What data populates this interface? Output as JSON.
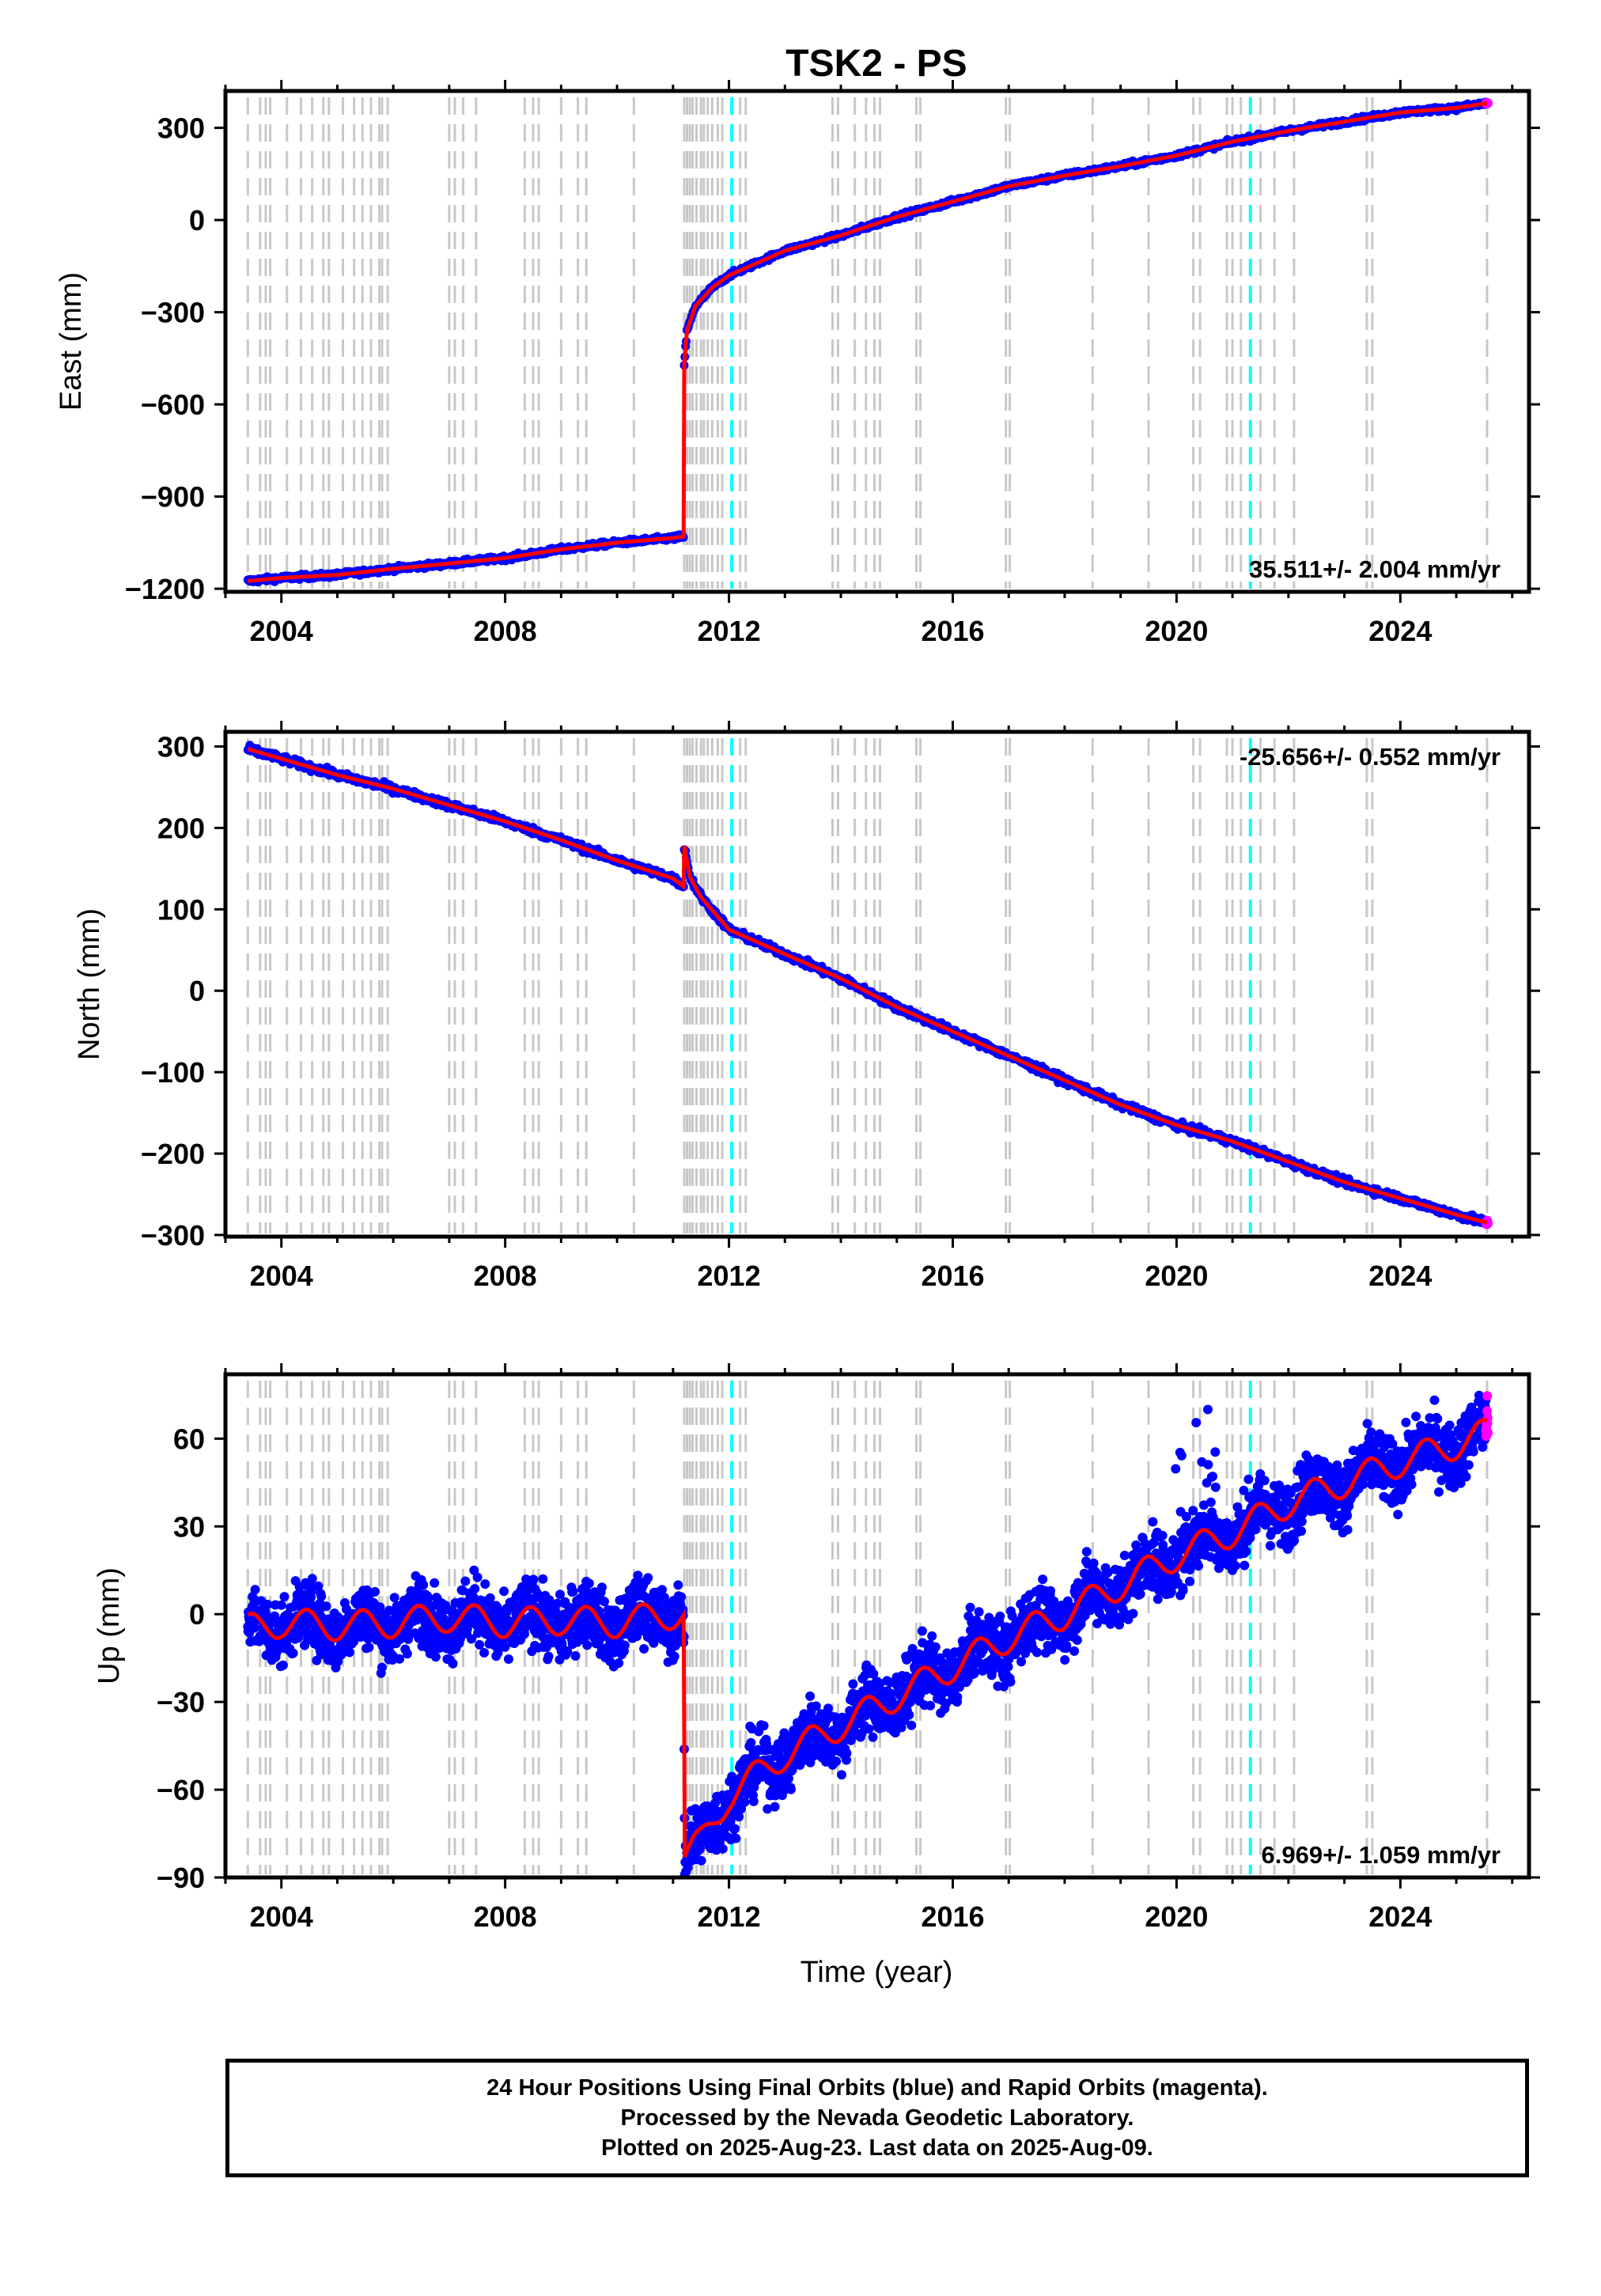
{
  "title": "TSK2 - PS",
  "xlabel": "Time (year)",
  "colors": {
    "final_orbits": "#0000ff",
    "rapid_orbits": "#ff00ff",
    "model": "#ff0000",
    "event_lines": "#c8c8c8",
    "highlight_lines": "#00ffff"
  },
  "caption": {
    "line1": "24 Hour Positions Using Final Orbits (blue) and Rapid Orbits (magenta).",
    "line2": "Processed by the Nevada Geodetic Laboratory.",
    "line3": "Plotted on 2025-Aug-23. Last data on 2025-Aug-09."
  },
  "chart_data": [
    {
      "type": "scatter",
      "ylabel": "East (mm)",
      "xlim": [
        2003.0,
        2026.3
      ],
      "ylim": [
        -1210,
        420
      ],
      "yticks": [
        -1200,
        -900,
        -600,
        -300,
        0,
        300
      ],
      "ytick_labels": [
        "−1200",
        "−900",
        "−600",
        "−300",
        "0",
        "300"
      ],
      "xticks": [
        2004,
        2008,
        2012,
        2016,
        2020,
        2024
      ],
      "annotation": "35.511+/- 2.004 mm/yr",
      "annotation_position": "bottom-right",
      "series": [
        {
          "role": "final_orbits_and_model",
          "x": [
            2003.4,
            2004.0,
            2005.0,
            2006.0,
            2007.0,
            2008.0,
            2009.0,
            2010.0,
            2011.0,
            2011.19,
            2011.2,
            2011.25,
            2011.4,
            2011.7,
            2012.0,
            2012.5,
            2013.0,
            2014.0,
            2015.0,
            2016.0,
            2017.0,
            2018.0,
            2019.0,
            2020.0,
            2021.0,
            2022.0,
            2023.0,
            2024.0,
            2025.0,
            2025.55
          ],
          "y": [
            -1175,
            -1165,
            -1155,
            -1135,
            -1118,
            -1100,
            -1072,
            -1050,
            -1035,
            -1030,
            -470,
            -360,
            -280,
            -220,
            -180,
            -140,
            -100,
            -50,
            10,
            60,
            110,
            145,
            175,
            210,
            255,
            290,
            320,
            350,
            365,
            380
          ]
        }
      ]
    },
    {
      "type": "scatter",
      "ylabel": "North (mm)",
      "xlim": [
        2003.0,
        2026.3
      ],
      "ylim": [
        -302,
        318
      ],
      "yticks": [
        -300,
        -200,
        -100,
        0,
        100,
        200,
        300
      ],
      "ytick_labels": [
        "−300",
        "−200",
        "−100",
        "0",
        "100",
        "200",
        "300"
      ],
      "xticks": [
        2004,
        2008,
        2012,
        2016,
        2020,
        2024
      ],
      "annotation": "-25.656+/- 0.552 mm/yr",
      "annotation_position": "top-right",
      "series": [
        {
          "role": "final_orbits_and_model",
          "x": [
            2003.4,
            2004.0,
            2005.0,
            2006.0,
            2007.0,
            2008.0,
            2009.0,
            2010.0,
            2011.0,
            2011.19,
            2011.2,
            2011.3,
            2011.5,
            2012.0,
            2013.0,
            2014.0,
            2015.0,
            2016.0,
            2017.0,
            2018.0,
            2019.0,
            2020.0,
            2021.0,
            2022.0,
            2023.0,
            2024.0,
            2025.0,
            2025.55
          ],
          "y": [
            297,
            285,
            265,
            248,
            228,
            208,
            185,
            160,
            138,
            128,
            178,
            140,
            115,
            75,
            45,
            15,
            -20,
            -50,
            -80,
            -110,
            -140,
            -165,
            -185,
            -210,
            -235,
            -255,
            -275,
            -285
          ]
        }
      ]
    },
    {
      "type": "scatter",
      "ylabel": "Up (mm)",
      "xlim": [
        2003.0,
        2026.3
      ],
      "ylim": [
        -90,
        82
      ],
      "yticks": [
        -90,
        -60,
        -30,
        0,
        30,
        60
      ],
      "ytick_labels": [
        "−90",
        "−60",
        "−30",
        "0",
        "30",
        "60"
      ],
      "xticks": [
        2004,
        2008,
        2012,
        2016,
        2020,
        2024
      ],
      "annotation": "6.969+/- 1.059 mm/yr",
      "annotation_position": "bottom-right",
      "series": [
        {
          "role": "final_orbits_and_model",
          "x": [
            2003.4,
            2004.0,
            2005.0,
            2006.0,
            2007.0,
            2008.0,
            2009.0,
            2010.0,
            2011.0,
            2011.19,
            2011.21,
            2011.5,
            2012.0,
            2013.0,
            2014.0,
            2015.0,
            2016.0,
            2017.0,
            2018.0,
            2019.0,
            2020.0,
            2021.0,
            2022.0,
            2023.0,
            2024.0,
            2025.0,
            2025.55
          ],
          "y": [
            -5,
            -3,
            -4,
            -3,
            -1,
            -3,
            -2,
            -3,
            0,
            0,
            -83,
            -78,
            -62,
            -48,
            -38,
            -28,
            -18,
            -8,
            0,
            10,
            20,
            28,
            38,
            45,
            52,
            58,
            62
          ]
        }
      ]
    }
  ]
}
